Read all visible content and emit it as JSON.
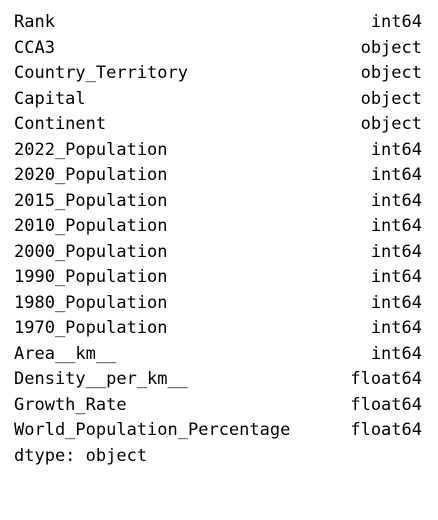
{
  "rows": [
    {
      "name": "Rank",
      "dtype": "int64"
    },
    {
      "name": "CCA3",
      "dtype": "object"
    },
    {
      "name": "Country_Territory",
      "dtype": "object"
    },
    {
      "name": "Capital",
      "dtype": "object"
    },
    {
      "name": "Continent",
      "dtype": "object"
    },
    {
      "name": "2022_Population",
      "dtype": "int64"
    },
    {
      "name": "2020_Population",
      "dtype": "int64"
    },
    {
      "name": "2015_Population",
      "dtype": "int64"
    },
    {
      "name": "2010_Population",
      "dtype": "int64"
    },
    {
      "name": "2000_Population",
      "dtype": "int64"
    },
    {
      "name": "1990_Population",
      "dtype": "int64"
    },
    {
      "name": "1980_Population",
      "dtype": "int64"
    },
    {
      "name": "1970_Population",
      "dtype": "int64"
    },
    {
      "name": "Area__km__",
      "dtype": "int64"
    },
    {
      "name": "Density__per_km__",
      "dtype": "float64"
    },
    {
      "name": "Growth_Rate",
      "dtype": "float64"
    },
    {
      "name": "World_Population_Percentage",
      "dtype": "float64"
    }
  ],
  "footer": "dtype: object"
}
